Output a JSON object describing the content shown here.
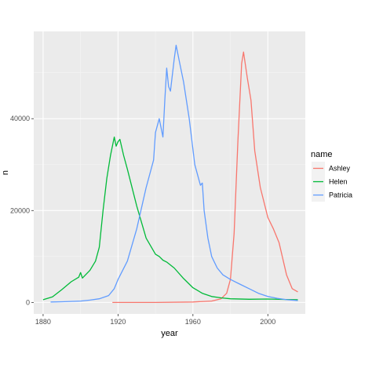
{
  "chart_data": {
    "type": "line",
    "xlabel": "year",
    "ylabel": "n",
    "xlim": [
      1875,
      2020
    ],
    "ylim": [
      -2500,
      59000
    ],
    "x_ticks": [
      1880,
      1920,
      1960,
      2000
    ],
    "x_tick_labels": [
      "1880",
      "1920",
      "1960",
      "2000"
    ],
    "y_ticks": [
      0,
      20000,
      40000
    ],
    "y_tick_labels": [
      "0",
      "20000",
      "40000"
    ],
    "grid": true,
    "legend": {
      "title": "name",
      "placement": "right"
    },
    "series": [
      {
        "name": "Ashley",
        "color": "#F8766D",
        "x": [
          1917,
          1940,
          1960,
          1970,
          1975,
          1978,
          1980,
          1982,
          1984,
          1986,
          1987,
          1989,
          1991,
          1993,
          1996,
          2000,
          2003,
          2006,
          2010,
          2013,
          2016
        ],
        "y": [
          0,
          0,
          100,
          300,
          800,
          2000,
          5000,
          15000,
          35000,
          52000,
          54500,
          49000,
          44000,
          33000,
          25000,
          18500,
          16000,
          13000,
          6000,
          3000,
          2300
        ]
      },
      {
        "name": "Helen",
        "color": "#00BA38",
        "x": [
          1880,
          1885,
          1890,
          1895,
          1899,
          1900,
          1901,
          1905,
          1908,
          1910,
          1912,
          1914,
          1916,
          1918,
          1919,
          1920,
          1921,
          1923,
          1925,
          1930,
          1935,
          1940,
          1942,
          1944,
          1946,
          1950,
          1955,
          1960,
          1965,
          1970,
          1975,
          1980,
          1990,
          2000,
          2010,
          2016
        ],
        "y": [
          600,
          1200,
          2800,
          4500,
          5500,
          6500,
          5300,
          7000,
          9000,
          12000,
          20000,
          27000,
          32000,
          36000,
          34000,
          35000,
          35500,
          32000,
          29000,
          21000,
          14000,
          10500,
          10000,
          9200,
          8800,
          7500,
          5200,
          3200,
          2000,
          1300,
          1000,
          800,
          700,
          750,
          650,
          600
        ]
      },
      {
        "name": "Patricia",
        "color": "#619CFF",
        "x": [
          1884,
          1890,
          1900,
          1905,
          1910,
          1915,
          1918,
          1920,
          1925,
          1930,
          1935,
          1939,
          1940,
          1942,
          1944,
          1945,
          1946,
          1947,
          1948,
          1950,
          1951,
          1953,
          1955,
          1958,
          1961,
          1963,
          1964,
          1965,
          1966,
          1968,
          1970,
          1973,
          1976,
          1980,
          1985,
          1990,
          1995,
          2000,
          2005,
          2010,
          2016
        ],
        "y": [
          100,
          150,
          300,
          500,
          800,
          1500,
          3000,
          5000,
          9000,
          16000,
          25000,
          31000,
          37000,
          40000,
          36000,
          44000,
          51000,
          47000,
          46000,
          53000,
          56000,
          52000,
          48000,
          40000,
          30000,
          27000,
          25500,
          26000,
          20000,
          14000,
          10000,
          7500,
          6000,
          5000,
          4000,
          3000,
          2000,
          1300,
          900,
          600,
          400
        ]
      }
    ]
  }
}
